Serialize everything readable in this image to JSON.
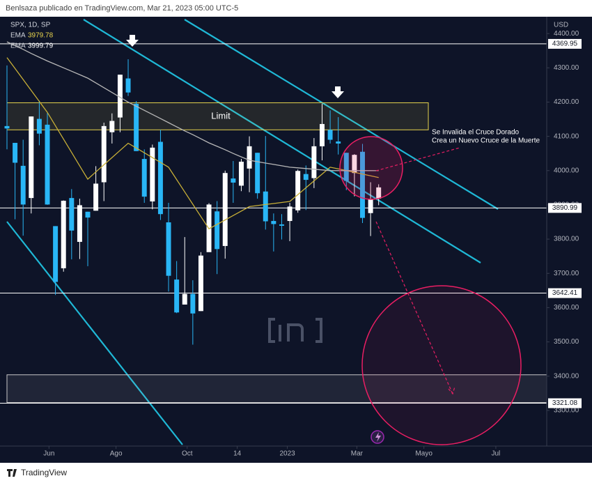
{
  "header": {
    "text": "Benlsaza publicado en TradingView.com, Mar 21, 2023 05:00 UTC-5"
  },
  "footer": {
    "brand": "TradingView"
  },
  "chart_data": {
    "type": "candlestick",
    "symbol": "SPX, 1D, SP",
    "currency": "USD",
    "open": [
      4130,
      4081,
      4014,
      3920,
      4151,
      4134,
      3838,
      3715,
      3920,
      3792,
      3880,
      3883,
      3966,
      4112,
      4155,
      4269,
      4195,
      4034,
      3910,
      4084,
      3849,
      3682,
      3609,
      3640,
      3590,
      3762,
      3881,
      3780,
      3977,
      3956,
      4006,
      4052,
      3939,
      3853,
      3843,
      3853,
      3884,
      3990,
      3978,
      4071,
      4119,
      4085,
      4052,
      3993,
      4055,
      3876,
      3918
    ],
    "high": [
      4307,
      4081,
      4090,
      4158,
      4204,
      4168,
      3838,
      3913,
      3946,
      3918,
      3880,
      4013,
      4140,
      4167,
      4280,
      4325,
      4203,
      4062,
      4076,
      4119,
      3906,
      3736,
      3806,
      3680,
      3762,
      3905,
      3911,
      4000,
      4028,
      4034,
      4100,
      4052,
      4101,
      3875,
      3873,
      3906,
      4003,
      4015,
      4095,
      4195,
      4176,
      4156,
      4052,
      4048,
      4078,
      3966,
      3960
    ],
    "low": [
      4062,
      3858,
      3810,
      3875,
      4074,
      3900,
      3637,
      3705,
      3741,
      3742,
      3721,
      3883,
      3911,
      4079,
      4112,
      4218,
      4057,
      3906,
      3887,
      3856,
      3647,
      3584,
      3609,
      3492,
      3590,
      3764,
      3698,
      3743,
      3906,
      3940,
      3937,
      3918,
      3828,
      3764,
      3799,
      3794,
      3877,
      3885,
      3949,
      4030,
      4079,
      4047,
      3943,
      3925,
      3847,
      3809,
      3899
    ],
    "close": [
      4123,
      4023,
      3901,
      4158,
      4108,
      3901,
      3675,
      3912,
      3825,
      3899,
      3863,
      3962,
      4130,
      4145,
      4280,
      4228,
      4057,
      3924,
      4067,
      3873,
      3693,
      3586,
      3640,
      3583,
      3752,
      3901,
      3771,
      3993,
      3965,
      4026,
      4071,
      3934,
      3852,
      3844,
      3839,
      3895,
      3999,
      3973,
      4071,
      4136,
      4090,
      4079,
      3970,
      4046,
      3862,
      3917,
      3951
    ],
    "up_color": "#ffffff",
    "down_color": "#29b6f6",
    "xlim": [
      0,
      66.8
    ],
    "xticks": [
      {
        "value": 5.2,
        "label": "Jun"
      },
      {
        "value": 13.5,
        "label": "Ago"
      },
      {
        "value": 22.3,
        "label": "Oct"
      },
      {
        "value": 28.5,
        "label": "14"
      },
      {
        "value": 34.7,
        "label": "2023"
      },
      {
        "value": 43.3,
        "label": "Mar"
      },
      {
        "value": 51.6,
        "label": "Mayo"
      },
      {
        "value": 60.5,
        "label": "Jul"
      }
    ],
    "ylim": [
      3196,
      4441
    ],
    "yticks": [
      {
        "value": 4400,
        "label": "4400.00"
      },
      {
        "value": 4300,
        "label": "4300.00"
      },
      {
        "value": 4200,
        "label": "4200.00"
      },
      {
        "value": 4100,
        "label": "4100.00"
      },
      {
        "value": 4000,
        "label": "4000.00"
      },
      {
        "value": 3900,
        "label": "3900.00"
      },
      {
        "value": 3800,
        "label": "3800.00"
      },
      {
        "value": 3700,
        "label": "3700.00"
      },
      {
        "value": 3600,
        "label": "3600.00"
      },
      {
        "value": 3500,
        "label": "3500.00"
      },
      {
        "value": 3400,
        "label": "3400.00"
      },
      {
        "value": 3300,
        "label": "3300.00"
      }
    ],
    "series": [
      {
        "name": "EMA",
        "color": "#c9b037",
        "values": [
          4330,
          4298,
          4266,
          4234,
          4202,
          4170,
          4131,
          4092,
          4053,
          4014,
          3975,
          3996,
          4017,
          4038,
          4059,
          4080,
          4066,
          4052,
          4038,
          4024,
          4010,
          3974,
          3938,
          3902,
          3866,
          3830,
          3843,
          3856,
          3869,
          3882,
          3895,
          3898,
          3901,
          3904,
          3907,
          3910,
          3930,
          3950,
          3970,
          3990,
          4010,
          4005,
          4000,
          3995,
          3990,
          3985,
          3979.78
        ]
      },
      {
        "name": "EMA",
        "color": "#b8b8b8",
        "values": [
          4376,
          4365,
          4354,
          4342,
          4331,
          4320,
          4310,
          4300,
          4290,
          4280,
          4270,
          4256,
          4242,
          4228,
          4214,
          4200,
          4188,
          4176,
          4164,
          4152,
          4140,
          4128,
          4116,
          4105,
          4093,
          4081,
          4071,
          4061,
          4050,
          4040,
          4030,
          4026,
          4022,
          4018,
          4014,
          4010,
          4008,
          4006,
          4004,
          4002,
          4000,
          4000,
          4000,
          4000,
          4000,
          4000,
          3999.79
        ]
      }
    ],
    "levels": [
      {
        "value": 4369.95,
        "color": "#ffffff"
      },
      {
        "value": 3890.99,
        "color": "#ffffff"
      },
      {
        "value": 3642.41,
        "color": "#ffffff"
      },
      {
        "value": 3321.08,
        "color": "#ffffff"
      }
    ],
    "zones": [
      {
        "label": "Limit",
        "range": [
          4119,
          4198
        ],
        "color": "#e8d44d"
      },
      {
        "range": [
          3323,
          3404
        ],
        "color": "#c8c8c8"
      }
    ],
    "annotations": [
      "Se Invalida el Cruce Dorado",
      "Crea un Nuevo Cruce de la Muerte"
    ]
  }
}
